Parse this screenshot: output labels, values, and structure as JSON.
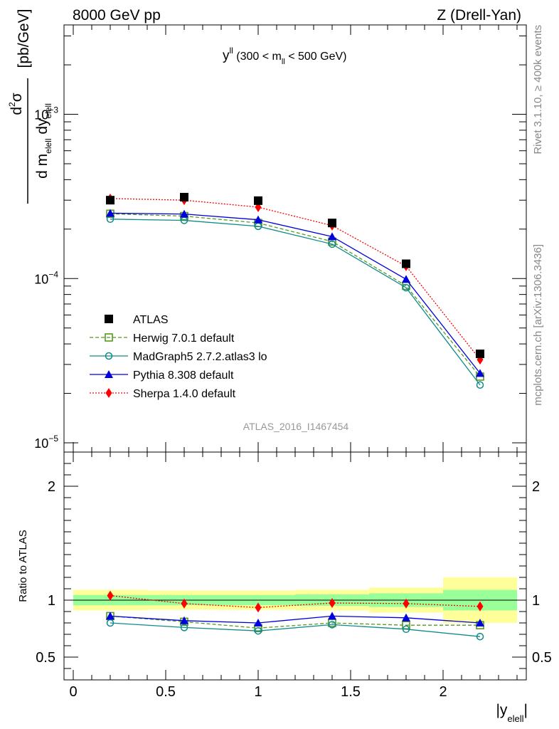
{
  "header": {
    "left": "8000 GeV pp",
    "right": "Z (Drell-Yan)"
  },
  "side_labels": {
    "rivet": "Rivet 3.1.10, ≥ 400k events",
    "mcplots": "mcplots.cern.ch [arXiv:1306.3436]"
  },
  "analysis_tag": "ATLAS_2016_I1467454",
  "chart_data": [
    {
      "type": "scatter",
      "panel": "main",
      "title": "y^ll (300 < m_ll < 500 GeV)",
      "title_parts": {
        "var": "y",
        "var_sup": "ll",
        "pre": " (300 < m",
        "sub": "ll",
        "post": " < 500 GeV)"
      },
      "ylabel": "d²σ / d m_elell dy_elell [pb/GeV]",
      "ylabel_parts": {
        "num_base": "d",
        "num_sup": "2",
        "num_tail": "σ",
        "den_a": "d m",
        "den_a_sub": "elell",
        "den_b": " dy",
        "den_b_sub": "elell",
        "unit": "[pb/GeV]"
      },
      "yscale": "log",
      "ylim": [
        1e-05,
        0.0035
      ],
      "xlim": [
        -0.05,
        2.45
      ],
      "ytick_labels": [
        {
          "value": 0.001,
          "base": "10",
          "exp": "−3"
        },
        {
          "value": 0.0001,
          "base": "10",
          "exp": "−4"
        },
        {
          "value": 1e-05,
          "base": "10",
          "exp": "−5"
        }
      ],
      "x": [
        0.2,
        0.6,
        1.0,
        1.4,
        1.8,
        2.2
      ],
      "legend_position": "bottom-left",
      "series": [
        {
          "name": "ATLAS",
          "color": "#000000",
          "marker": "square-filled",
          "line": "none",
          "values": [
            0.0003,
            0.000313,
            0.000298,
            0.000218,
            0.000123,
            3.48e-05
          ]
        },
        {
          "name": "Herwig 7.0.1 default",
          "color": "#559a1f",
          "marker": "square-open",
          "line": "dashed",
          "values": [
            0.000248,
            0.00024,
            0.000218,
            0.000168,
            9.03e-05,
            2.53e-05
          ]
        },
        {
          "name": "MadGraph5 2.7.2.atlas3 lo",
          "color": "#0f8a8a",
          "marker": "circle-open",
          "line": "solid",
          "values": [
            0.00023,
            0.000226,
            0.000208,
            0.000162,
            8.8e-05,
            2.25e-05
          ]
        },
        {
          "name": "Pythia 8.308 default",
          "color": "#0000dd",
          "marker": "triangle-filled",
          "line": "solid",
          "values": [
            0.00025,
            0.000247,
            0.000228,
            0.00018,
            9.9e-05,
            2.65e-05
          ]
        },
        {
          "name": "Sherpa 1.4.0 default",
          "color": "#ff0000",
          "marker": "diamond-filled",
          "line": "dotted",
          "values": [
            0.000307,
            0.0003,
            0.000272,
            0.00021,
            0.000119,
            3.21e-05
          ]
        }
      ]
    },
    {
      "type": "scatter",
      "panel": "ratio",
      "ylabel": "Ratio to ATLAS",
      "ylim": [
        0.3,
        2.3
      ],
      "xlabel": "|y_elell|",
      "xlabel_parts": {
        "base": "|y",
        "sub": "elell",
        "tail": "|"
      },
      "xticks": [
        0,
        0.5,
        1,
        1.5,
        2
      ],
      "xtick_labels": [
        "0",
        "0.5",
        "1",
        "1.5",
        "2"
      ],
      "yticks": [
        0.5,
        1,
        2
      ],
      "ytick_labels": [
        "0.5",
        "1",
        "2"
      ],
      "x": [
        0.2,
        0.6,
        1.0,
        1.4,
        1.8,
        2.2
      ],
      "bands": [
        {
          "x0": 0.0,
          "x1": 0.4,
          "inner": [
            0.955,
            1.045
          ],
          "outer": [
            0.91,
            1.09
          ]
        },
        {
          "x0": 0.4,
          "x1": 0.8,
          "inner": [
            0.955,
            1.045
          ],
          "outer": [
            0.915,
            1.085
          ]
        },
        {
          "x0": 0.8,
          "x1": 1.2,
          "inner": [
            0.955,
            1.045
          ],
          "outer": [
            0.915,
            1.085
          ]
        },
        {
          "x0": 1.2,
          "x1": 1.6,
          "inner": [
            0.95,
            1.05
          ],
          "outer": [
            0.91,
            1.09
          ]
        },
        {
          "x0": 1.6,
          "x1": 2.0,
          "inner": [
            0.94,
            1.06
          ],
          "outer": [
            0.89,
            1.11
          ]
        },
        {
          "x0": 2.0,
          "x1": 2.4,
          "inner": [
            0.91,
            1.09
          ],
          "outer": [
            0.8,
            1.2
          ]
        }
      ],
      "band_colors": {
        "inner": "#99ff99",
        "outer": "#ffff99"
      },
      "series": [
        {
          "name": "Herwig 7.0.1 default",
          "color": "#559a1f",
          "marker": "square-open",
          "line": "dashed",
          "values": [
            0.86,
            0.81,
            0.755,
            0.8,
            0.78,
            0.78
          ]
        },
        {
          "name": "MadGraph5 2.7.2.atlas3 lo",
          "color": "#0f8a8a",
          "marker": "circle-open",
          "line": "solid",
          "values": [
            0.8,
            0.76,
            0.73,
            0.785,
            0.745,
            0.68
          ]
        },
        {
          "name": "Pythia 8.308 default",
          "color": "#0000dd",
          "marker": "triangle-filled",
          "line": "solid",
          "values": [
            0.86,
            0.82,
            0.8,
            0.86,
            0.845,
            0.8
          ]
        },
        {
          "name": "Sherpa 1.4.0 default",
          "color": "#ff0000",
          "marker": "diamond-filled",
          "line": "dotted",
          "values": [
            1.04,
            0.97,
            0.935,
            0.975,
            0.97,
            0.945
          ]
        }
      ]
    }
  ]
}
